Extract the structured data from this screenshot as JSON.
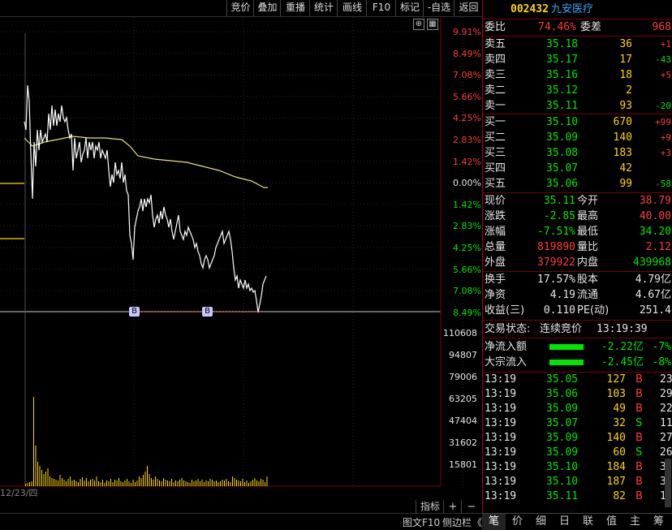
{
  "toolbar": {
    "buttons": [
      "竞价",
      "叠加",
      "重播",
      "统计",
      "画线",
      "F10",
      "标记",
      "-自选",
      "返回"
    ]
  },
  "chart": {
    "price_axis": [
      "9.91%",
      "8.49%",
      "7.08%",
      "5.66%",
      "4.25%",
      "2.83%",
      "1.42%",
      "0.00%",
      "1.42%",
      "2.83%",
      "4.25%",
      "5.66%",
      "7.08%",
      "8.49%"
    ],
    "volume_axis": [
      "110608",
      "94807",
      "79006",
      "63205",
      "47404",
      "31602",
      "15801"
    ],
    "date_label": "12/23/四",
    "markers": [
      "B",
      "B"
    ],
    "controls": {
      "indicator": "指标",
      "plus": "+",
      "minus": "−"
    },
    "icons": [
      "plus-icon",
      "grid-icon"
    ]
  },
  "footer": {
    "f10_label": "图文F10",
    "sidebar_label": "侧边栏",
    "sidebar_arrow": "《"
  },
  "stock": {
    "code": "002432",
    "name": "九安医疗"
  },
  "order_book": {
    "ratio_label": "委比",
    "ratio_value": "74.46%",
    "diff_label": "委差",
    "diff_value": "968",
    "asks": [
      {
        "label": "卖五",
        "price": "35.18",
        "vol": "36",
        "chg": "+1"
      },
      {
        "label": "卖四",
        "price": "35.17",
        "vol": "17",
        "chg": "-43"
      },
      {
        "label": "卖三",
        "price": "35.16",
        "vol": "18",
        "chg": "+5"
      },
      {
        "label": "卖二",
        "price": "35.12",
        "vol": "2",
        "chg": ""
      },
      {
        "label": "卖一",
        "price": "35.11",
        "vol": "93",
        "chg": "-20"
      }
    ],
    "bids": [
      {
        "label": "买一",
        "price": "35.10",
        "vol": "670",
        "chg": "+99"
      },
      {
        "label": "买二",
        "price": "35.09",
        "vol": "140",
        "chg": "+9"
      },
      {
        "label": "买三",
        "price": "35.08",
        "vol": "183",
        "chg": "+3"
      },
      {
        "label": "买四",
        "price": "35.07",
        "vol": "42",
        "chg": ""
      },
      {
        "label": "买五",
        "price": "35.06",
        "vol": "99",
        "chg": "-58"
      }
    ]
  },
  "quote": {
    "rows": [
      {
        "l1": "现价",
        "v1": "35.11",
        "l2": "今开",
        "v2": "38.79"
      },
      {
        "l1": "涨跌",
        "v1": "-2.85",
        "l2": "最高",
        "v2": "40.00"
      },
      {
        "l1": "涨幅",
        "v1": "-7.51%",
        "l2": "最低",
        "v2": "34.20"
      },
      {
        "l1": "总量",
        "v1": "819890",
        "l2": "量比",
        "v2": "2.12"
      },
      {
        "l1": "外盘",
        "v1": "379922",
        "l2": "内盘",
        "v2": "439968"
      }
    ],
    "rows2": [
      {
        "l1": "换手",
        "v1": "17.57%",
        "l2": "股本",
        "v2": "4.79亿"
      },
      {
        "l1": "净资",
        "v1": "4.19",
        "l2": "流通",
        "v2": "4.67亿"
      },
      {
        "l1": "收益(三)",
        "v1": "0.110",
        "l2": "PE(动)",
        "v2": "251.4"
      }
    ]
  },
  "status": {
    "label": "交易状态:",
    "value": "连续竞价",
    "time": "13:19:39"
  },
  "flows": [
    {
      "label": "净流入额",
      "value": "-2.22亿",
      "pct": "-7%",
      "bar": 0.6
    },
    {
      "label": "大宗流入",
      "value": "-2.45亿",
      "pct": "-8%",
      "bar": 0.6
    }
  ],
  "ticks": [
    {
      "t": "13:19",
      "p": "35.05",
      "v": "127",
      "d": "B",
      "x": "23"
    },
    {
      "t": "13:19",
      "p": "35.06",
      "v": "103",
      "d": "B",
      "x": "29"
    },
    {
      "t": "13:19",
      "p": "35.09",
      "v": "49",
      "d": "B",
      "x": "22"
    },
    {
      "t": "13:19",
      "p": "35.07",
      "v": "32",
      "d": "S",
      "x": "11"
    },
    {
      "t": "13:19",
      "p": "35.09",
      "v": "140",
      "d": "B",
      "x": "27"
    },
    {
      "t": "13:19",
      "p": "35.09",
      "v": "60",
      "d": "S",
      "x": "26"
    },
    {
      "t": "13:19",
      "p": "35.10",
      "v": "184",
      "d": "B",
      "x": "3"
    },
    {
      "t": "13:19",
      "p": "35.10",
      "v": "187",
      "d": "B",
      "x": "3"
    },
    {
      "t": "13:19",
      "p": "35.11",
      "v": "82",
      "d": "B",
      "x": "1"
    }
  ],
  "tabs": [
    "笔",
    "价",
    "细",
    "日",
    "联",
    "值",
    "主",
    "筹"
  ],
  "colors": {
    "up": "#ff3c3c",
    "down": "#00e600",
    "volume": "#ffd700",
    "price_line": "#ffffff",
    "avg_line": "#e8e07a",
    "border": "#aa0000",
    "accent_code": "#ffd700",
    "accent_name": "#33aaff"
  }
}
